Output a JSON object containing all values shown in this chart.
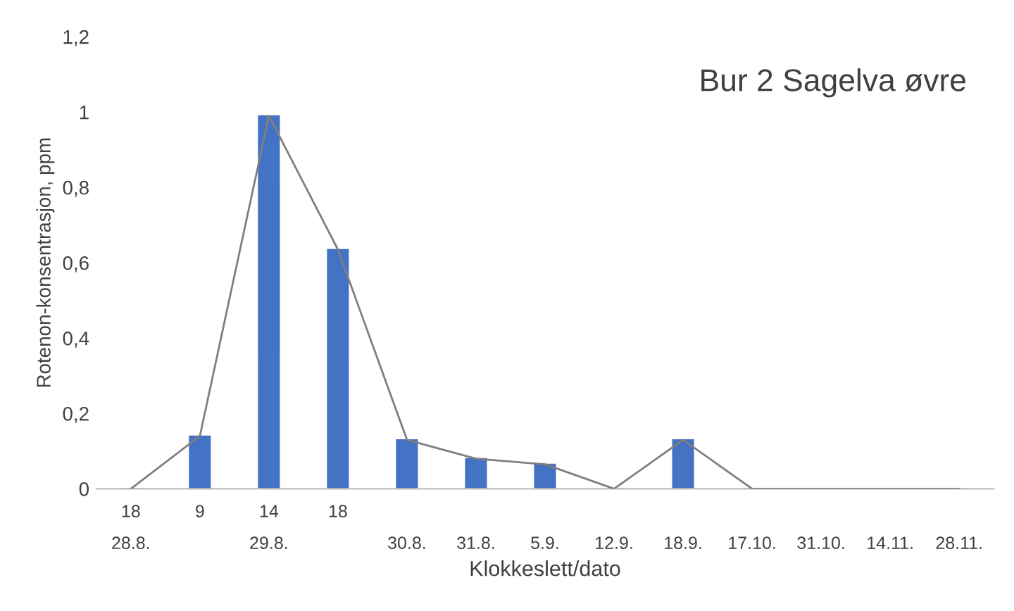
{
  "chart_data": {
    "type": "bar",
    "title": "Bur 2 Sagelva øvre",
    "xlabel": "Klokkeslett/dato",
    "ylabel": "Rotenon-konsentrasjon, ppm",
    "categories": [
      "18\n28.8.",
      "9\n ",
      "14\n29.8.",
      "18\n ",
      " \n30.8.",
      " \n31.8.",
      " \n5.9.",
      " \n12.9.",
      " \n18.9.",
      " \n17.10.",
      " \n31.10.",
      " \n14.11.",
      " \n28.11."
    ],
    "series": [
      {
        "color": "#4472c4",
        "values": [
          0,
          0.14,
          0.99,
          0.635,
          0.13,
          0.08,
          0.065,
          0,
          0.13,
          0,
          0,
          0,
          0
        ]
      },
      {
        "type": "line",
        "color": "#7f7f7f",
        "values": [
          0,
          0.14,
          0.99,
          0.635,
          0.13,
          0.08,
          0.065,
          0,
          0.13,
          0,
          0,
          0,
          0
        ]
      }
    ],
    "ylim": [
      0,
      1.2
    ],
    "yticks": [
      0,
      {
        "value": 0.2,
        "label": "0,2"
      },
      {
        "value": 0.4,
        "label": "0,4"
      },
      {
        "value": 0.6,
        "label": "0,6"
      },
      {
        "value": 0.8,
        "label": "0,8"
      },
      1,
      {
        "value": 1.2,
        "label": "1,2"
      }
    ],
    "grid": false,
    "legend": false,
    "marker": "none"
  }
}
